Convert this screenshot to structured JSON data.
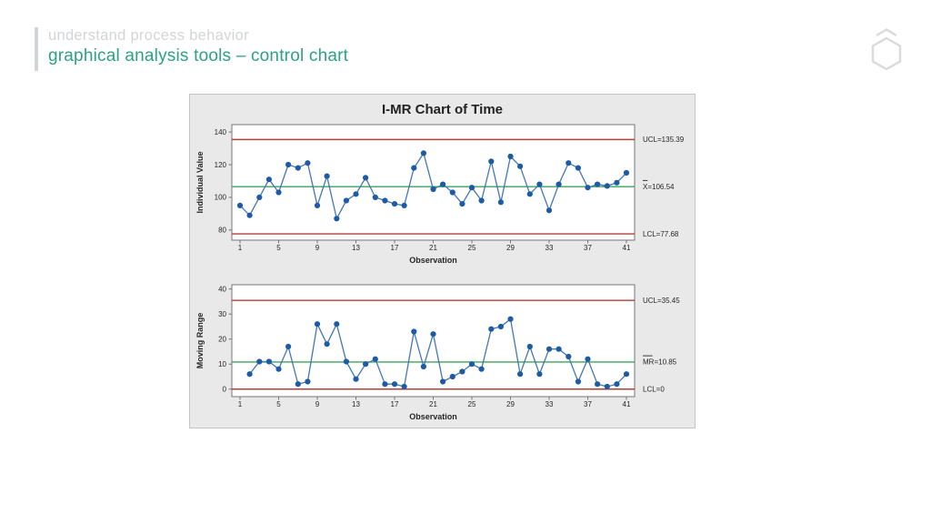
{
  "header": {
    "subtitle": "understand process behavior",
    "title": "graphical analysis tools – control chart",
    "accent_color": "#2da183",
    "muted_color": "#d3d6d8"
  },
  "logo": {
    "icon": "hexagon-with-caret",
    "color": "#d8dadc"
  },
  "chart_data": {
    "type": "line",
    "chart_kind": "I-MR control chart",
    "title": "I-MR Chart of Time",
    "charts": [
      {
        "name": "individuals",
        "ylabel": "Individual Value",
        "xlabel": "Observation",
        "x_start": 1,
        "values": [
          95,
          89,
          100,
          111,
          103,
          120,
          118,
          121,
          95,
          113,
          87,
          98,
          102,
          112,
          100,
          98,
          96,
          95,
          118,
          127,
          105,
          108,
          103,
          96,
          106,
          98,
          122,
          97,
          125,
          119,
          102,
          108,
          92,
          108,
          121,
          118,
          106,
          108,
          107,
          109,
          115
        ],
        "ucl": 135.39,
        "center": 106.54,
        "lcl": 77.68,
        "labels": {
          "ucl": "UCL=135.39",
          "center_bar": "X",
          "center_rest": "=106.54",
          "lcl": "LCL=77.68"
        },
        "yticks": [
          80,
          100,
          120,
          140
        ],
        "xticks": [
          1,
          5,
          9,
          13,
          17,
          21,
          25,
          29,
          33,
          37,
          41
        ],
        "ylim": [
          73.8,
          144.5
        ]
      },
      {
        "name": "moving-range",
        "ylabel": "Moving Range",
        "xlabel": "Observation",
        "x_start": 2,
        "values": [
          6,
          11,
          11,
          8,
          17,
          2,
          3,
          26,
          18,
          26,
          11,
          4,
          10,
          12,
          2,
          2,
          1,
          23,
          9,
          22,
          3,
          5,
          7,
          10,
          8,
          24,
          25,
          28,
          6,
          17,
          6,
          16,
          16,
          13,
          3,
          12,
          2,
          1,
          2,
          6
        ],
        "ucl": 35.45,
        "center": 10.85,
        "lcl": 0,
        "labels": {
          "ucl": "UCL=35.45",
          "center_bar": "MR",
          "center_rest": "=10.85",
          "lcl": "LCL=0"
        },
        "yticks": [
          0,
          10,
          20,
          30,
          40
        ],
        "xticks": [
          1,
          5,
          9,
          13,
          17,
          21,
          25,
          29,
          33,
          37,
          41
        ],
        "ylim": [
          -3,
          41.7
        ]
      }
    ],
    "colors": {
      "marker": "#1d5ba5",
      "series_line": "#4377b5",
      "limit_line": "#b04038",
      "center_line": "#3da35a",
      "frame": "#767676",
      "text": "#262626",
      "panel_bg": "#e9e9e9",
      "plot_bg": "#ffffff"
    }
  }
}
